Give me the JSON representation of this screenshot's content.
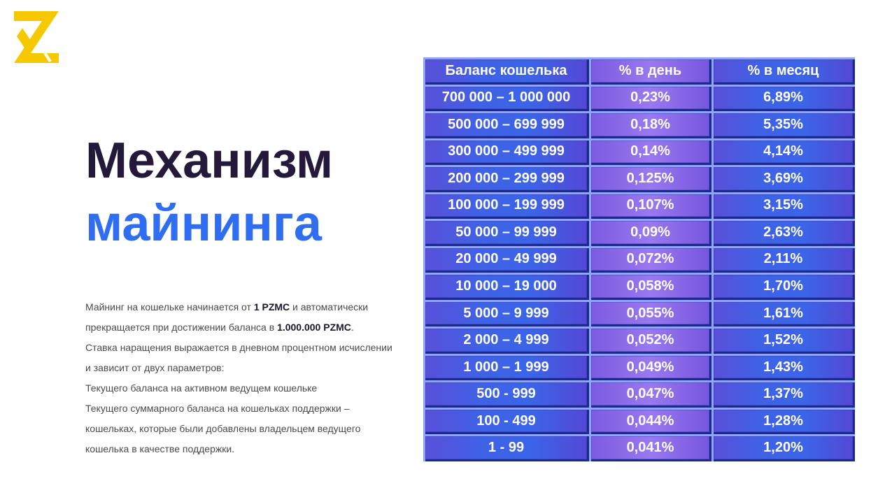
{
  "header": {
    "title_line1": "Механизм",
    "title_line2": "майнинга"
  },
  "intro": {
    "parts": [
      "Майнинг на кошельке начинается от ",
      "1 PZMC",
      " и автоматически прекращается  при достижении баланса в ",
      "1.000.000 PZMC",
      "."
    ],
    "lines": [
      "Ставка наращения выражается в дневном процентном исчислении и зависит от двух параметров:",
      "Текущего баланса на активном ведущем кошельке",
      "Текущего суммарного баланса на кошельках поддержки – кошельках,  которые были добавлены владельцем ведущего кошелька в качестве поддержки."
    ]
  },
  "table": {
    "header": [
      "Баланс кошелька",
      "% в день",
      "% в месяц"
    ],
    "rows": [
      [
        "700 000 – 1 000 000",
        "0,23%",
        "6,89%"
      ],
      [
        "500 000 – 699 999",
        "0,18%",
        "5,35%"
      ],
      [
        "300 000 – 499 999",
        "0,14%",
        "4,14%"
      ],
      [
        "200 000 – 299 999",
        "0,125%",
        "3,69%"
      ],
      [
        "100 000 – 199 999",
        "0,107%",
        "3,15%"
      ],
      [
        "50 000 – 99 999",
        "0,09%",
        "2,63%"
      ],
      [
        "20 000 – 49 999",
        "0,072%",
        "2,11%"
      ],
      [
        "10 000 – 19 000",
        "0,058%",
        "1,70%"
      ],
      [
        "5 000 – 9 999",
        "0,055%",
        "1,61%"
      ],
      [
        "2 000 – 4 999",
        "0,052%",
        "1,52%"
      ],
      [
        "1 000 – 1 999",
        "0,049%",
        "1,43%"
      ],
      [
        "500 - 999",
        "0,047%",
        "1,37%"
      ],
      [
        "100 - 499",
        "0,044%",
        "1,28%"
      ],
      [
        "1 - 99",
        "0,041%",
        "1,20%"
      ]
    ]
  }
}
